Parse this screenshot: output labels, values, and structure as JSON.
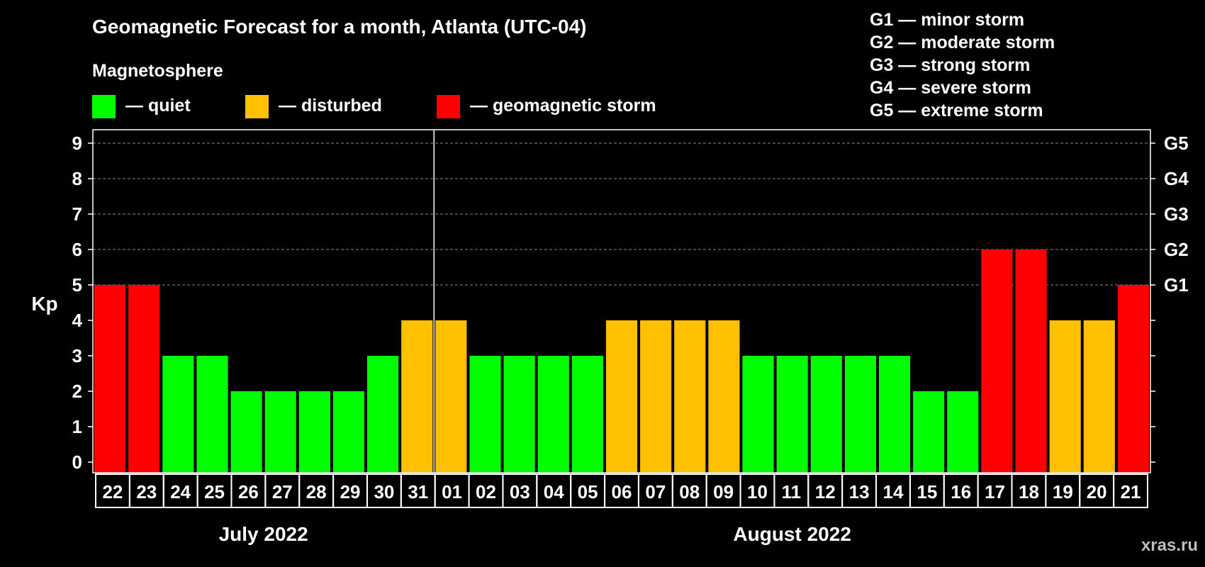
{
  "title": "Geomagnetic Forecast for a month, Atlanta (UTC-04)",
  "magnetosphere_legend": {
    "title": "Magnetosphere",
    "items": [
      {
        "label": "— quiet",
        "color": "#00ff00"
      },
      {
        "label": "— disturbed",
        "color": "#ffc000"
      },
      {
        "label": "— geomagnetic storm",
        "color": "#ff0000"
      }
    ]
  },
  "g_scale": [
    "G1 — minor storm",
    "G2 — moderate storm",
    "G3 — strong storm",
    "G4 — severe storm",
    "G5 — extreme storm"
  ],
  "watermark": "xras.ru",
  "chart_data": {
    "type": "bar",
    "ylabel": "Kp",
    "ylim": [
      0,
      9
    ],
    "yticks": [
      0,
      1,
      2,
      3,
      4,
      5,
      6,
      7,
      8,
      9
    ],
    "right_axis_labels": [
      {
        "value": 5,
        "label": "G1"
      },
      {
        "value": 6,
        "label": "G2"
      },
      {
        "value": 7,
        "label": "G3"
      },
      {
        "value": 8,
        "label": "G4"
      },
      {
        "value": 9,
        "label": "G5"
      }
    ],
    "grid": "dashed horizontal at 5-9",
    "categories": [
      "22",
      "23",
      "24",
      "25",
      "26",
      "27",
      "28",
      "29",
      "30",
      "31",
      "01",
      "02",
      "03",
      "04",
      "05",
      "06",
      "07",
      "08",
      "09",
      "10",
      "11",
      "12",
      "13",
      "14",
      "15",
      "16",
      "17",
      "18",
      "19",
      "20",
      "21"
    ],
    "values": [
      5,
      5,
      3,
      3,
      2,
      2,
      2,
      2,
      3,
      4,
      4,
      3,
      3,
      3,
      3,
      4,
      4,
      4,
      4,
      3,
      3,
      3,
      3,
      3,
      2,
      2,
      6,
      6,
      4,
      4,
      5
    ],
    "months": [
      {
        "label": "July 2022",
        "start": 0,
        "end": 9
      },
      {
        "label": "August 2022",
        "start": 10,
        "end": 30
      }
    ],
    "colors": {
      "quiet": "#00ff00",
      "disturbed": "#ffc000",
      "storm": "#ff0000"
    }
  }
}
